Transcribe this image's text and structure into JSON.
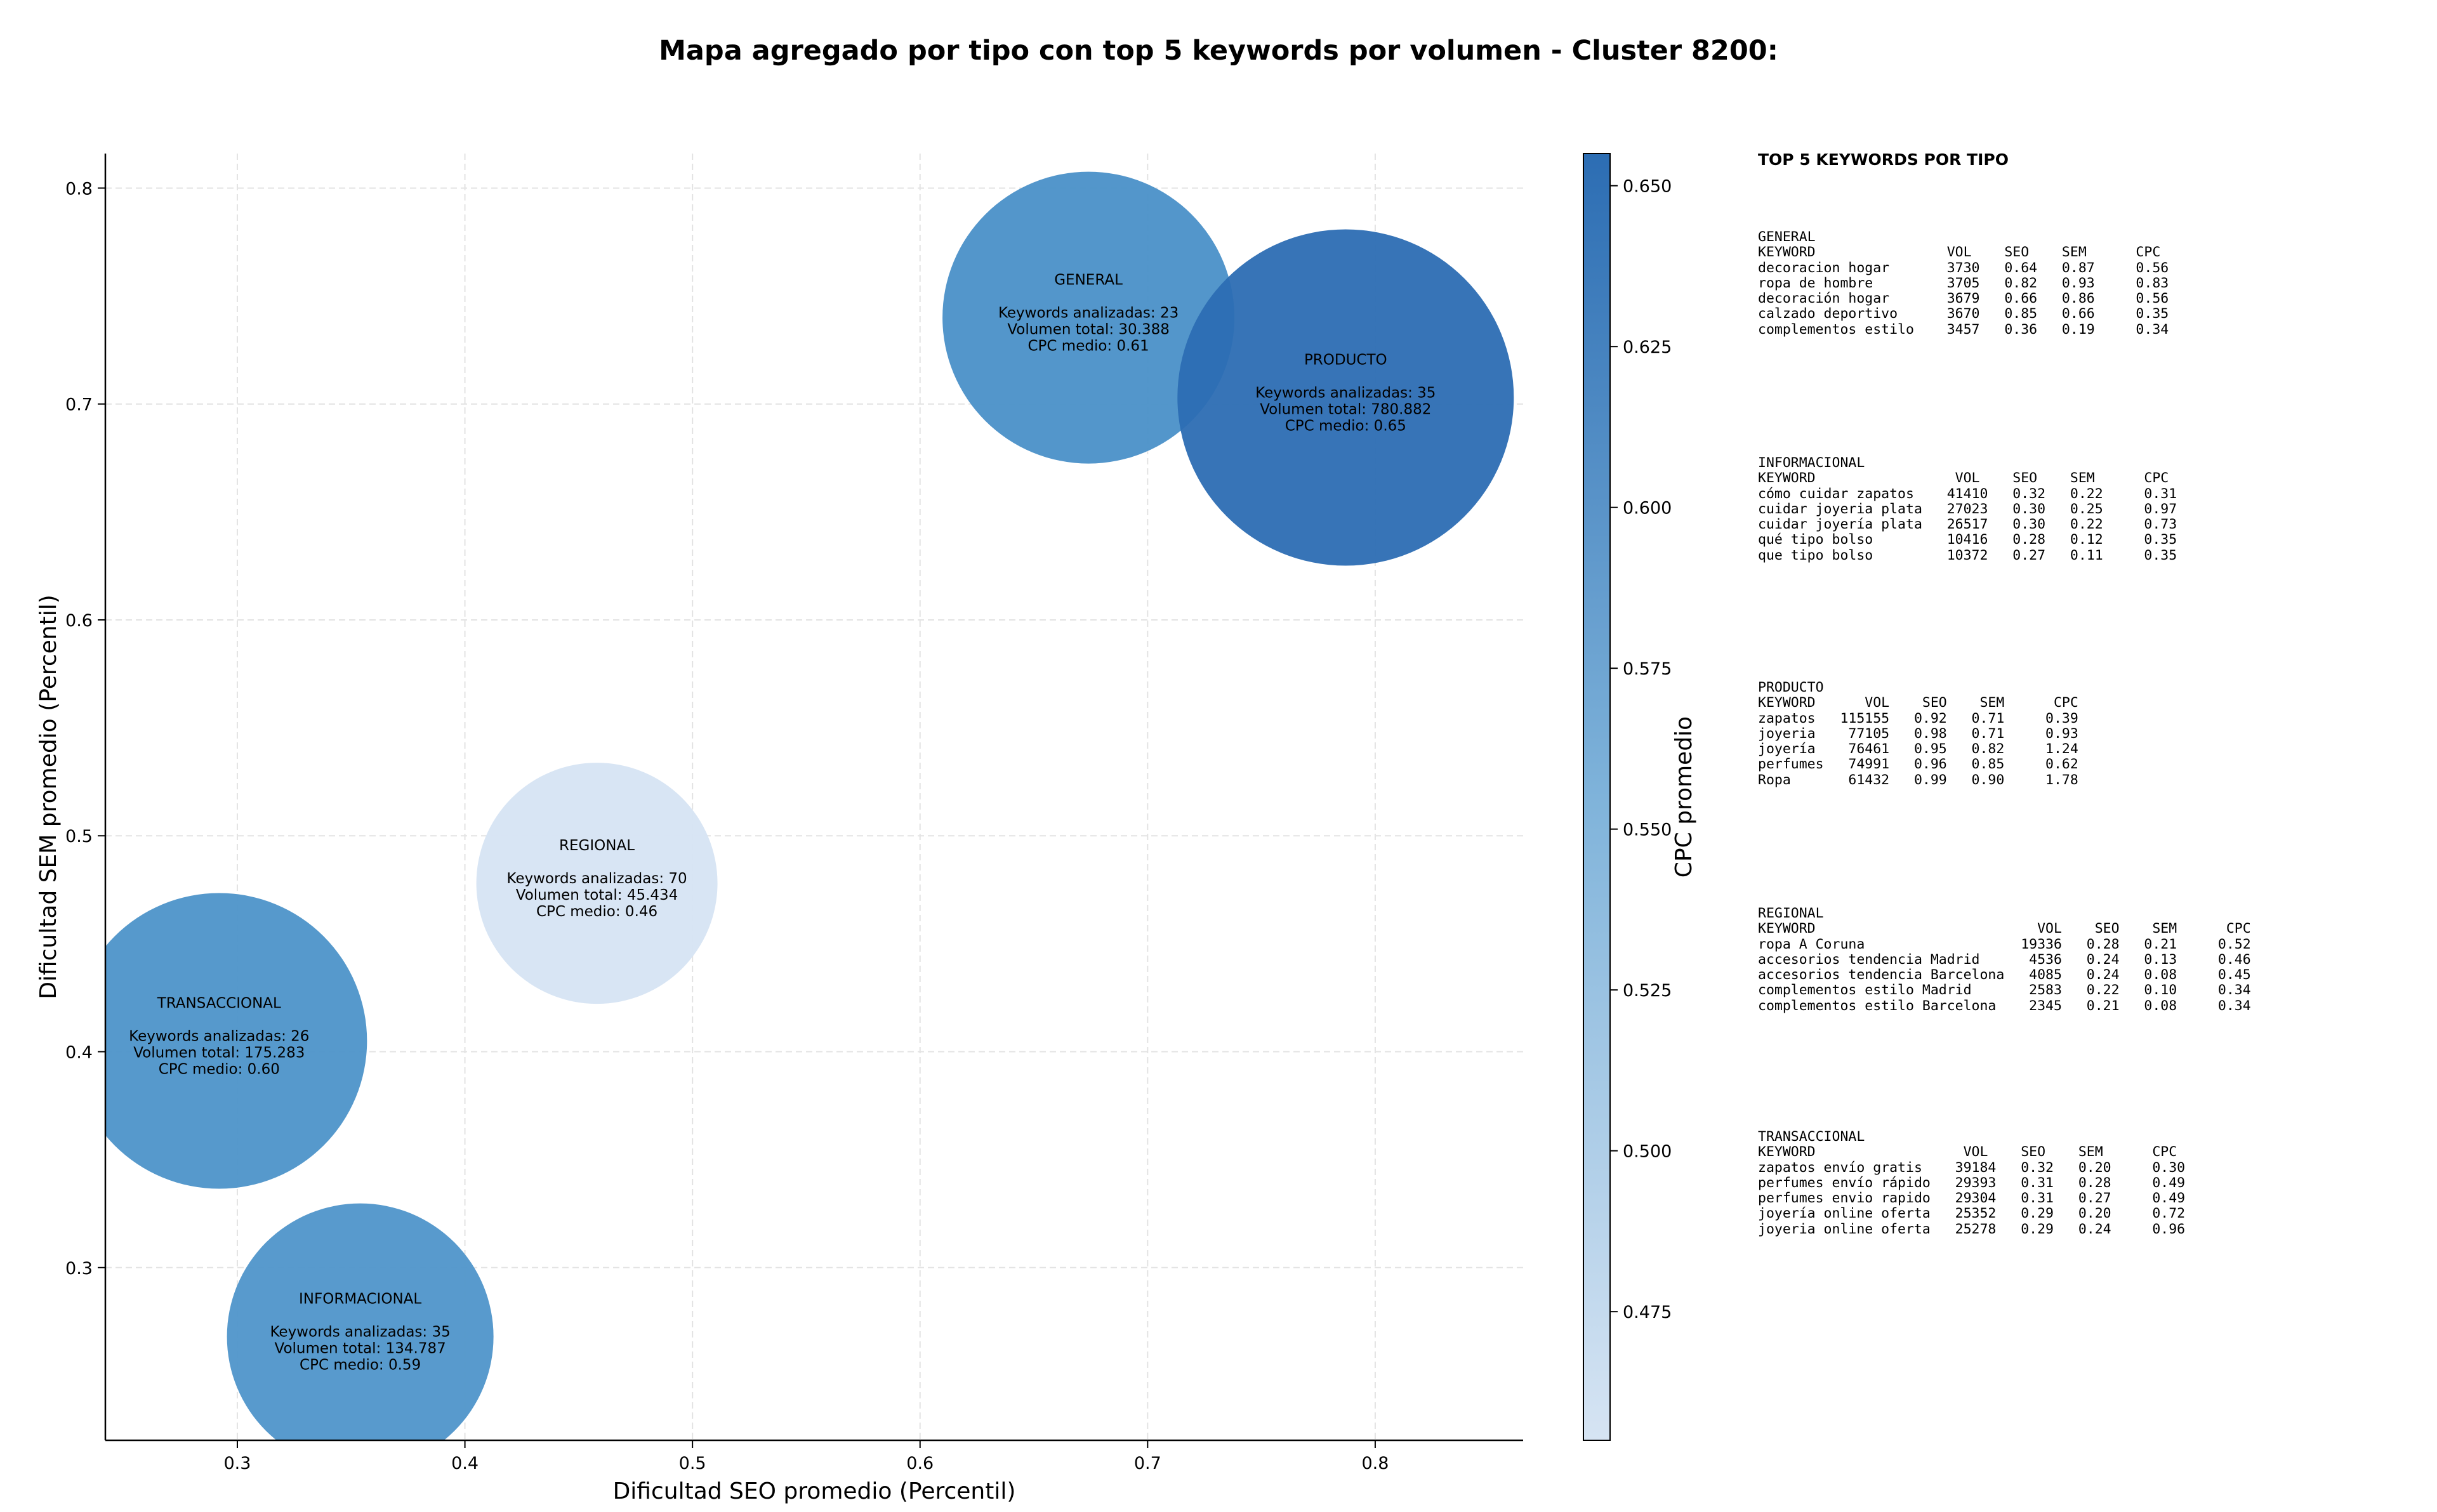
{
  "chart_data": {
    "type": "scatter",
    "title": "Mapa agregado por tipo con top 5 keywords por volumen - Cluster 8200:",
    "xlabel": "Dificultad SEO promedio (Percentil)",
    "ylabel": "Dificultad SEM promedio (Percentil)",
    "xlim": [
      0.242,
      0.865
    ],
    "ylim": [
      0.22,
      0.816
    ],
    "xticks": [
      "0.3",
      "0.4",
      "0.5",
      "0.6",
      "0.7",
      "0.8"
    ],
    "yticks": [
      "0.3",
      "0.4",
      "0.5",
      "0.6",
      "0.7",
      "0.8"
    ],
    "grid": true,
    "colorbar": {
      "label": "CPC promedio",
      "range": [
        0.455,
        0.655
      ],
      "ticks": [
        "0.475",
        "0.500",
        "0.525",
        "0.550",
        "0.575",
        "0.600",
        "0.625",
        "0.650"
      ],
      "color_low": "#d6e4f3",
      "color_high": "#2c6db3"
    },
    "points": [
      {
        "name": "GENERAL",
        "x": 0.674,
        "y": 0.74,
        "keywords_label": "Keywords analizadas: 23",
        "volume_label": "Volumen total: 30.388",
        "cpc_label": "CPC medio: 0.61",
        "cpc": 0.61,
        "volume": 30388,
        "color": "#4a90c8"
      },
      {
        "name": "PRODUCTO",
        "x": 0.787,
        "y": 0.703,
        "keywords_label": "Keywords analizadas: 35",
        "volume_label": "Volumen total: 780.882",
        "cpc_label": "CPC medio: 0.65",
        "cpc": 0.65,
        "volume": 780882,
        "color": "#2c6db3"
      },
      {
        "name": "REGIONAL",
        "x": 0.458,
        "y": 0.478,
        "keywords_label": "Keywords analizadas: 70",
        "volume_label": "Volumen total: 45.434",
        "cpc_label": "CPC medio: 0.46",
        "cpc": 0.46,
        "volume": 45434,
        "color": "#d6e4f3"
      },
      {
        "name": "TRANSACCIONAL",
        "x": 0.292,
        "y": 0.405,
        "keywords_label": "Keywords analizadas: 26",
        "volume_label": "Volumen total: 175.283",
        "cpc_label": "CPC medio: 0.60",
        "cpc": 0.6,
        "volume": 175283,
        "color": "#4d93c9"
      },
      {
        "name": "INFORMACIONAL",
        "x": 0.354,
        "y": 0.268,
        "keywords_label": "Keywords analizadas: 35",
        "volume_label": "Volumen total: 134.787",
        "cpc_label": "CPC medio: 0.59",
        "cpc": 0.59,
        "volume": 134787,
        "color": "#4f95ca"
      }
    ]
  },
  "keyword_tables": {
    "title": "TOP 5 KEYWORDS POR TIPO",
    "blocks": [
      {
        "type": "GENERAL",
        "header": "KEYWORD                VOL    SEO    SEM      CPC",
        "rows": [
          "decoracion hogar       3730   0.64   0.87     0.56",
          "ropa de hombre         3705   0.82   0.93     0.83",
          "decoración hogar       3679   0.66   0.86     0.56",
          "calzado deportivo      3670   0.85   0.66     0.35",
          "complementos estilo    3457   0.36   0.19     0.34"
        ]
      },
      {
        "type": "INFORMACIONAL",
        "header": "KEYWORD                 VOL    SEO    SEM      CPC",
        "rows": [
          "cómo cuidar zapatos    41410   0.32   0.22     0.31",
          "cuidar joyeria plata   27023   0.30   0.25     0.97",
          "cuidar joyería plata   26517   0.30   0.22     0.73",
          "qué tipo bolso         10416   0.28   0.12     0.35",
          "que tipo bolso         10372   0.27   0.11     0.35"
        ]
      },
      {
        "type": "PRODUCTO",
        "header": "KEYWORD      VOL    SEO    SEM      CPC",
        "rows": [
          "zapatos   115155   0.92   0.71     0.39",
          "joyeria    77105   0.98   0.71     0.93",
          "joyería    76461   0.95   0.82     1.24",
          "perfumes   74991   0.96   0.85     0.62",
          "Ropa       61432   0.99   0.90     1.78"
        ]
      },
      {
        "type": "REGIONAL",
        "header": "KEYWORD                           VOL    SEO    SEM      CPC",
        "rows": [
          "ropa A Coruna                   19336   0.28   0.21     0.52",
          "accesorios tendencia Madrid      4536   0.24   0.13     0.46",
          "accesorios tendencia Barcelona   4085   0.24   0.08     0.45",
          "complementos estilo Madrid       2583   0.22   0.10     0.34",
          "complementos estilo Barcelona    2345   0.21   0.08     0.34"
        ]
      },
      {
        "type": "TRANSACCIONAL",
        "header": "KEYWORD                  VOL    SEO    SEM      CPC",
        "rows": [
          "zapatos envío gratis    39184   0.32   0.20     0.30",
          "perfumes envío rápido   29393   0.31   0.28     0.49",
          "perfumes envio rapido   29304   0.31   0.27     0.49",
          "joyería online oferta   25352   0.29   0.20     0.72",
          "joyeria online oferta   25278   0.29   0.24     0.96"
        ]
      }
    ]
  }
}
